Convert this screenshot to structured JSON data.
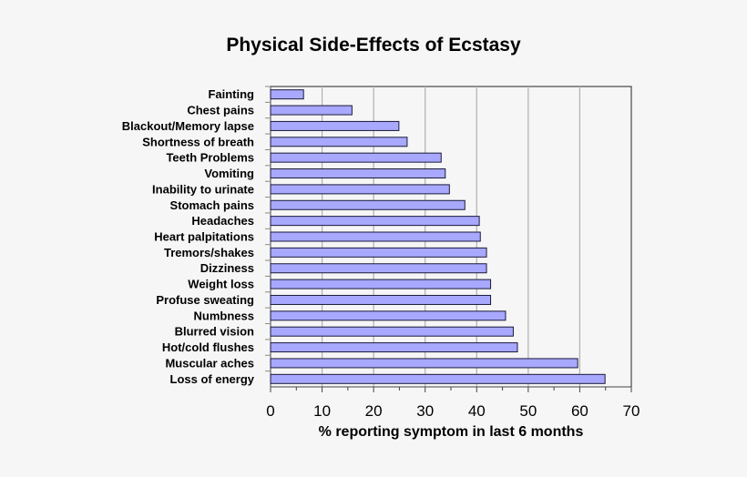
{
  "chart_data": {
    "type": "bar",
    "orientation": "horizontal",
    "title": "Physical Side-Effects of Ecstasy",
    "xlabel": "% reporting symptom in last 6 months",
    "ylabel": "",
    "xlim": [
      0,
      70
    ],
    "xticks": [
      0,
      10,
      20,
      30,
      40,
      50,
      60,
      70
    ],
    "grid": true,
    "categories": [
      "Fainting",
      "Chest pains",
      "Blackout/Memory lapse",
      "Shortness of breath",
      "Teeth Problems",
      "Vomiting",
      "Inability to urinate",
      "Stomach pains",
      "Headaches",
      "Heart palpitations",
      "Tremors/shakes",
      "Dizziness",
      "Weight loss",
      "Profuse sweating",
      "Numbness",
      "Blurred vision",
      "Hot/cold flushes",
      "Muscular aches",
      "Loss of energy"
    ],
    "values": [
      6.4,
      15.8,
      24.9,
      26.5,
      33.1,
      33.9,
      34.7,
      37.7,
      40.5,
      40.7,
      41.9,
      41.9,
      42.7,
      42.7,
      45.6,
      47.1,
      47.9,
      59.6,
      64.9
    ],
    "colors": {
      "bar": "#a8a8ff",
      "bar_border": "#1a1a3a",
      "grid": "#b0b0b0",
      "background": "#f6f6f6"
    }
  }
}
